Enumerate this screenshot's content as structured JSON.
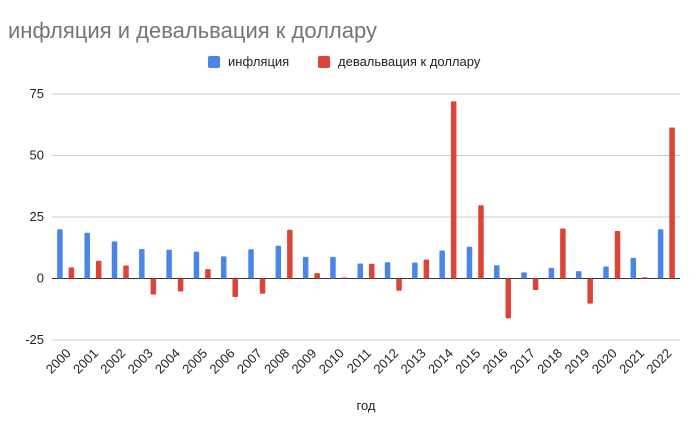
{
  "chart_data": {
    "type": "bar",
    "title": "инфляция и девальвация к доллару",
    "xlabel": "год",
    "ylabel": "",
    "categories": [
      "2000",
      "2001",
      "2002",
      "2003",
      "2004",
      "2005",
      "2006",
      "2007",
      "2008",
      "2009",
      "2010",
      "2011",
      "2012",
      "2013",
      "2014",
      "2015",
      "2016",
      "2017",
      "2018",
      "2019",
      "2020",
      "2021",
      "2022"
    ],
    "series": [
      {
        "name": "инфляция",
        "color": "#4a86e8",
        "values": [
          20,
          18.6,
          15.1,
          12,
          11.7,
          10.9,
          9,
          11.9,
          13.3,
          8.8,
          8.8,
          6.1,
          6.6,
          6.5,
          11.4,
          12.9,
          5.4,
          2.5,
          4.3,
          3,
          4.9,
          8.4,
          20
        ]
      },
      {
        "name": "девальвация к доллару",
        "color": "#db4437",
        "values": [
          4.5,
          7.2,
          5.3,
          -6.5,
          -5.3,
          3.8,
          -7.5,
          -6.2,
          19.8,
          2.2,
          0.4,
          6,
          -5,
          7.7,
          72,
          29.8,
          -16.2,
          -4.7,
          20.3,
          -10.2,
          19.3,
          0.5,
          61.4
        ]
      }
    ],
    "ylim": [
      -25,
      75
    ],
    "yticks": [
      -25,
      0,
      25,
      50,
      75
    ],
    "grid": true,
    "legend_position": "top-center"
  }
}
